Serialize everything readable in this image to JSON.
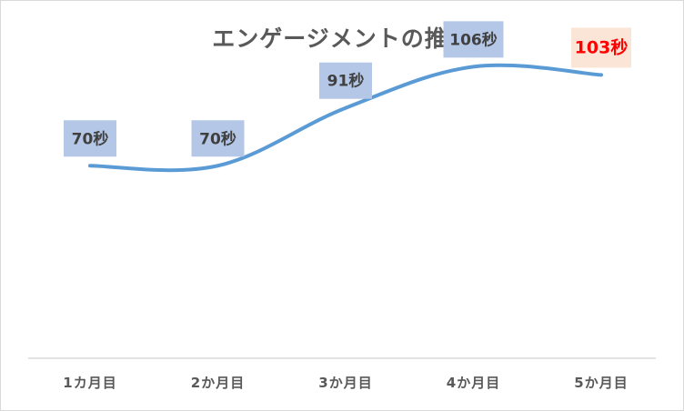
{
  "chart_data": {
    "type": "line",
    "title": "エンゲージメントの推移",
    "categories": [
      "1カ月目",
      "2か月目",
      "3か月目",
      "4か月目",
      "5か月目"
    ],
    "values": [
      70,
      70,
      91,
      106,
      103
    ],
    "data_labels": [
      "70秒",
      "70秒",
      "91秒",
      "106秒",
      "103秒"
    ],
    "unit": "秒",
    "highlight_index": 4,
    "smooth": true,
    "grid": false,
    "legend": "none",
    "ylim": [
      0,
      120
    ],
    "colors": {
      "line": "#5b9bd5",
      "label_box": "#b4c7e7",
      "highlight_box": "#fbe5d6",
      "highlight_text": "#ff0000",
      "axis": "#d9d9d9"
    }
  }
}
